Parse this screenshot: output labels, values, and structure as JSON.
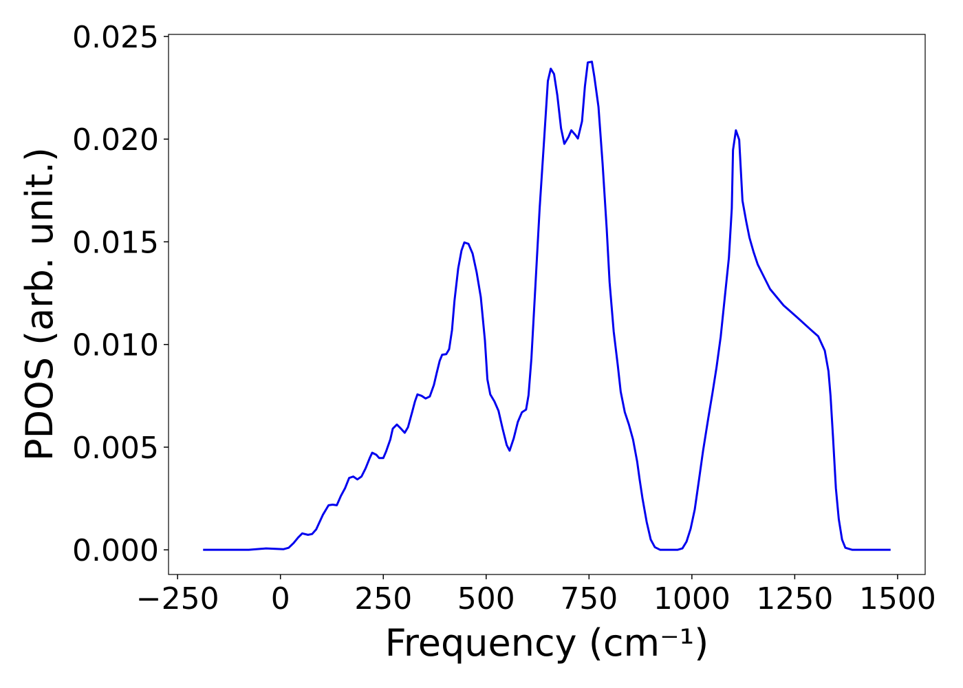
{
  "chart_data": {
    "type": "line",
    "xlabel": "Frequency (cm⁻¹)",
    "ylabel": "PDOS (arb. unit.)",
    "x": [
      -188,
      -77,
      -35,
      7,
      20,
      32,
      43,
      53,
      67,
      77,
      87,
      103,
      117,
      127,
      137,
      147,
      157,
      167,
      177,
      187,
      197,
      207,
      217,
      223,
      233,
      240,
      250,
      257,
      267,
      273,
      283,
      293,
      302,
      310,
      320,
      327,
      333,
      343,
      353,
      363,
      373,
      380,
      387,
      393,
      403,
      410,
      417,
      423,
      432,
      440,
      447,
      457,
      467,
      477,
      487,
      497,
      503,
      510,
      520,
      530,
      540,
      550,
      557,
      567,
      577,
      587,
      597,
      603,
      610,
      620,
      630,
      640,
      650,
      657,
      665,
      673,
      682,
      690,
      700,
      707,
      717,
      723,
      733,
      740,
      747,
      757,
      763,
      773,
      783,
      793,
      800,
      810,
      820,
      827,
      837,
      847,
      857,
      867,
      873,
      880,
      890,
      900,
      910,
      923,
      965,
      977,
      987,
      997,
      1007,
      1017,
      1027,
      1040,
      1050,
      1060,
      1070,
      1080,
      1090,
      1097,
      1100,
      1107,
      1115,
      1123,
      1132,
      1140,
      1150,
      1160,
      1170,
      1190,
      1223,
      1257,
      1290,
      1307,
      1323,
      1332,
      1337,
      1343,
      1350,
      1357,
      1365,
      1373,
      1390,
      1483
    ],
    "series": [
      {
        "color": "#0000ee",
        "values": [
          0,
          0,
          7e-05,
          3e-05,
          0.0001,
          0.00033,
          0.0006,
          0.0008,
          0.00073,
          0.00077,
          0.001,
          0.0017,
          0.00217,
          0.0022,
          0.00217,
          0.00263,
          0.003,
          0.0035,
          0.00357,
          0.00343,
          0.00357,
          0.00397,
          0.00447,
          0.00473,
          0.00463,
          0.00447,
          0.00447,
          0.0048,
          0.00537,
          0.0059,
          0.0061,
          0.0059,
          0.0057,
          0.00597,
          0.0067,
          0.00723,
          0.00757,
          0.0075,
          0.00737,
          0.00747,
          0.00803,
          0.00863,
          0.0092,
          0.0095,
          0.00953,
          0.00977,
          0.0107,
          0.01213,
          0.0137,
          0.01457,
          0.01497,
          0.0149,
          0.01443,
          0.0135,
          0.0123,
          0.0102,
          0.0083,
          0.00757,
          0.00723,
          0.00677,
          0.0059,
          0.0051,
          0.00483,
          0.00543,
          0.00623,
          0.0067,
          0.00683,
          0.00753,
          0.00933,
          0.01297,
          0.01663,
          0.0197,
          0.02283,
          0.02343,
          0.02317,
          0.02213,
          0.02053,
          0.01977,
          0.0201,
          0.02043,
          0.0202,
          0.02003,
          0.02087,
          0.02257,
          0.02373,
          0.02377,
          0.02303,
          0.02157,
          0.0188,
          0.01563,
          0.01303,
          0.01063,
          0.00897,
          0.0077,
          0.0067,
          0.0061,
          0.00537,
          0.0043,
          0.00343,
          0.0025,
          0.00137,
          0.0005,
          0.00013,
          0,
          0,
          7e-05,
          0.0004,
          0.00103,
          0.00197,
          0.00337,
          0.0048,
          0.00643,
          0.00763,
          0.0089,
          0.01037,
          0.0123,
          0.01423,
          0.01663,
          0.01947,
          0.02043,
          0.01997,
          0.017,
          0.016,
          0.0152,
          0.0145,
          0.0139,
          0.0135,
          0.0127,
          0.0119,
          0.0113,
          0.0107,
          0.0104,
          0.0097,
          0.0087,
          0.0075,
          0.0055,
          0.003,
          0.0015,
          0.0005,
          0.0001,
          0,
          0
        ]
      }
    ],
    "xlim": [
      -272,
      1567
    ],
    "ylim": [
      -0.0012,
      0.0251
    ],
    "xticks": [
      {
        "value": -250,
        "label": "−250"
      },
      0,
      250,
      500,
      750,
      1000,
      1250,
      1500
    ],
    "yticks": [
      {
        "value": 0,
        "label": "0.000"
      },
      {
        "value": 0.005,
        "label": "0.005"
      },
      {
        "value": 0.01,
        "label": "0.010"
      },
      {
        "value": 0.015,
        "label": "0.015"
      },
      {
        "value": 0.02,
        "label": "0.020"
      },
      {
        "value": 0.025,
        "label": "0.025"
      }
    ]
  }
}
